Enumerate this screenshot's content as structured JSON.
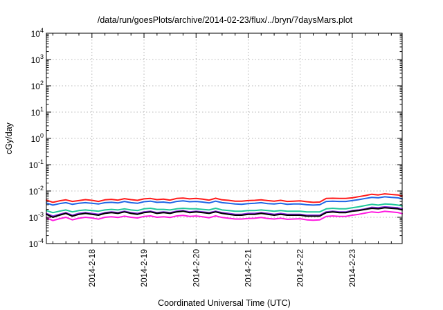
{
  "chart_data": {
    "type": "line",
    "title": "/data/run/goesPlots/archive/2014-02-23/flux/../bryn/7daysMars.plot",
    "xlabel": "Coordinated Universal Time (UTC)",
    "ylabel": "cGy/day",
    "y_scale": "log",
    "ylim_exponent": [
      -4,
      4
    ],
    "ylim": [
      0.0001,
      10000
    ],
    "y_tick_labels": [
      {
        "base": "10",
        "exp": "-4"
      },
      {
        "base": "10",
        "exp": "-3"
      },
      {
        "base": "10",
        "exp": "-2"
      },
      {
        "base": "10",
        "exp": "-1"
      },
      {
        "base": "10",
        "exp": "0"
      },
      {
        "base": "10",
        "exp": "1"
      },
      {
        "base": "10",
        "exp": "2"
      },
      {
        "base": "10",
        "exp": "3"
      },
      {
        "base": "10",
        "exp": "4"
      }
    ],
    "xlim": [
      "2014-02-17 03:00",
      "2014-02-23 23:00"
    ],
    "x_tick_labels": [
      "2014-2-18",
      "2014-2-19",
      "2014-2-20",
      "2014-2-21",
      "2014-2-22",
      "2014-2-23"
    ],
    "grid": true,
    "x": [
      "02-17 03:00",
      "02-17 06:00",
      "02-17 09:00",
      "02-17 12:00",
      "02-17 15:00",
      "02-17 18:00",
      "02-17 21:00",
      "02-18 00:00",
      "02-18 03:00",
      "02-18 06:00",
      "02-18 09:00",
      "02-18 12:00",
      "02-18 15:00",
      "02-18 18:00",
      "02-18 21:00",
      "02-19 00:00",
      "02-19 03:00",
      "02-19 06:00",
      "02-19 09:00",
      "02-19 12:00",
      "02-19 15:00",
      "02-19 18:00",
      "02-19 21:00",
      "02-20 00:00",
      "02-20 03:00",
      "02-20 06:00",
      "02-20 09:00",
      "02-20 12:00",
      "02-20 15:00",
      "02-20 18:00",
      "02-20 21:00",
      "02-21 00:00",
      "02-21 03:00",
      "02-21 06:00",
      "02-21 09:00",
      "02-21 12:00",
      "02-21 15:00",
      "02-21 18:00",
      "02-21 21:00",
      "02-22 00:00",
      "02-22 03:00",
      "02-22 06:00",
      "02-22 09:00",
      "02-22 12:00",
      "02-22 15:00",
      "02-22 18:00",
      "02-22 21:00",
      "02-23 00:00",
      "02-23 03:00",
      "02-23 06:00",
      "02-23 09:00",
      "02-23 12:00",
      "02-23 15:00",
      "02-23 18:00",
      "02-23 21:00",
      "02-23 23:00"
    ],
    "series": [
      {
        "color": "#ff1a1a",
        "values": [
          0.0045,
          0.0037,
          0.0042,
          0.0046,
          0.004,
          0.0043,
          0.0047,
          0.0044,
          0.004,
          0.0046,
          0.0048,
          0.0045,
          0.0051,
          0.0047,
          0.0044,
          0.005,
          0.0052,
          0.0047,
          0.0049,
          0.0045,
          0.0052,
          0.0054,
          0.005,
          0.0052,
          0.0049,
          0.0045,
          0.0053,
          0.0046,
          0.0044,
          0.0041,
          0.0041,
          0.0043,
          0.0044,
          0.0046,
          0.0043,
          0.0041,
          0.0044,
          0.004,
          0.0041,
          0.0042,
          0.0039,
          0.0037,
          0.0038,
          0.0052,
          0.0053,
          0.0052,
          0.0052,
          0.0055,
          0.0061,
          0.0067,
          0.0075,
          0.0071,
          0.0078,
          0.0074,
          0.0071,
          0.0065
        ]
      },
      {
        "color": "#1f66e6",
        "values": [
          0.0035,
          0.0029,
          0.0033,
          0.0036,
          0.0031,
          0.0034,
          0.0036,
          0.0034,
          0.0032,
          0.0036,
          0.0037,
          0.0035,
          0.004,
          0.0036,
          0.0034,
          0.0039,
          0.0041,
          0.0037,
          0.0038,
          0.0035,
          0.004,
          0.0042,
          0.0039,
          0.004,
          0.0038,
          0.0035,
          0.0041,
          0.0036,
          0.0034,
          0.0032,
          0.0031,
          0.0033,
          0.0034,
          0.0036,
          0.0033,
          0.0032,
          0.0034,
          0.0031,
          0.0032,
          0.0032,
          0.003,
          0.0029,
          0.003,
          0.004,
          0.0041,
          0.004,
          0.004,
          0.0043,
          0.0047,
          0.0052,
          0.0057,
          0.0055,
          0.006,
          0.0057,
          0.0055,
          0.005
        ]
      },
      {
        "color": "#1fc79a",
        "values": [
          0.0018,
          0.0015,
          0.0017,
          0.0019,
          0.0016,
          0.0018,
          0.0019,
          0.0018,
          0.0017,
          0.0019,
          0.002,
          0.0019,
          0.0021,
          0.0019,
          0.0018,
          0.0021,
          0.0022,
          0.002,
          0.002,
          0.0019,
          0.0021,
          0.0022,
          0.0021,
          0.0021,
          0.002,
          0.0019,
          0.0022,
          0.0019,
          0.0018,
          0.0017,
          0.0017,
          0.0018,
          0.0018,
          0.0019,
          0.0018,
          0.0017,
          0.0018,
          0.0017,
          0.0017,
          0.0017,
          0.0016,
          0.0016,
          0.0016,
          0.0021,
          0.0022,
          0.0021,
          0.0021,
          0.0023,
          0.0025,
          0.0028,
          0.0031,
          0.0029,
          0.0032,
          0.0031,
          0.0029,
          0.0027
        ]
      },
      {
        "color": "#8a2be2",
        "values": [
          0.0014,
          0.0011,
          0.0013,
          0.0015,
          0.0012,
          0.0014,
          0.0015,
          0.0014,
          0.0013,
          0.0015,
          0.0016,
          0.0015,
          0.0017,
          0.0015,
          0.0014,
          0.0016,
          0.0017,
          0.0015,
          0.0016,
          0.0015,
          0.0017,
          0.0018,
          0.0016,
          0.0017,
          0.0016,
          0.0015,
          0.0017,
          0.0015,
          0.0014,
          0.0013,
          0.0013,
          0.0014,
          0.0014,
          0.0015,
          0.0014,
          0.0013,
          0.0014,
          0.0013,
          0.0013,
          0.0013,
          0.0012,
          0.0012,
          0.0012,
          0.0016,
          0.0017,
          0.0016,
          0.0016,
          0.0018,
          0.0019,
          0.0021,
          0.0024,
          0.0023,
          0.0025,
          0.0024,
          0.0023,
          0.0021
        ]
      },
      {
        "color": "#000000",
        "values": [
          0.0013,
          0.001,
          0.0012,
          0.0014,
          0.0011,
          0.0013,
          0.0014,
          0.0013,
          0.0012,
          0.0014,
          0.0015,
          0.0014,
          0.0016,
          0.0014,
          0.0013,
          0.0015,
          0.0016,
          0.0014,
          0.0015,
          0.0014,
          0.0016,
          0.0017,
          0.0015,
          0.0016,
          0.0015,
          0.0014,
          0.0016,
          0.0014,
          0.0013,
          0.0012,
          0.0012,
          0.0013,
          0.0013,
          0.0014,
          0.0013,
          0.0012,
          0.0013,
          0.0012,
          0.0012,
          0.0012,
          0.0011,
          0.0011,
          0.0011,
          0.0015,
          0.0016,
          0.0015,
          0.0015,
          0.0017,
          0.0018,
          0.002,
          0.0022,
          0.0021,
          0.0023,
          0.0022,
          0.0021,
          0.0019
        ]
      },
      {
        "color": "#ff1ae0",
        "values": [
          0.00095,
          0.00075,
          0.00088,
          0.001,
          0.0008,
          0.00092,
          0.001,
          0.00094,
          0.00085,
          0.001,
          0.00105,
          0.00098,
          0.0011,
          0.001,
          0.00094,
          0.00108,
          0.00113,
          0.001,
          0.00105,
          0.00098,
          0.00112,
          0.00118,
          0.00108,
          0.00112,
          0.00105,
          0.00096,
          0.00113,
          0.00098,
          0.00092,
          0.00086,
          0.00086,
          0.0009,
          0.00092,
          0.00098,
          0.0009,
          0.00086,
          0.00092,
          0.00084,
          0.00086,
          0.00088,
          0.0008,
          0.00077,
          0.0008,
          0.00108,
          0.00112,
          0.00108,
          0.00108,
          0.0012,
          0.0013,
          0.00145,
          0.0016,
          0.00152,
          0.00168,
          0.0016,
          0.00152,
          0.00138
        ]
      }
    ]
  }
}
